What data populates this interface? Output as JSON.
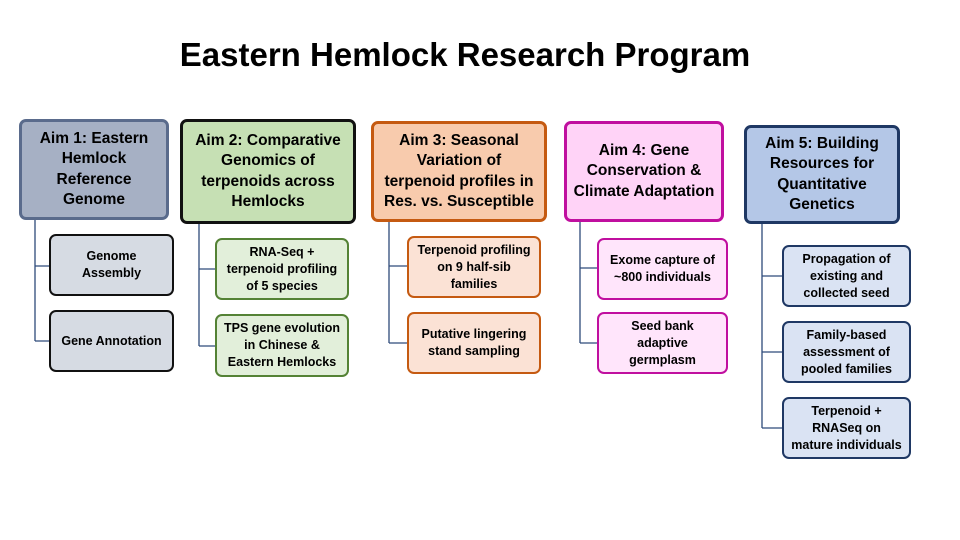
{
  "title": "Eastern Hemlock Research Program",
  "aims": [
    {
      "label": "Aim 1: Eastern Hemlock Reference Genome",
      "subs": [
        "Genome Assembly",
        "Gene Annotation"
      ]
    },
    {
      "label": "Aim 2: Comparative Genomics of terpenoids across Hemlocks",
      "subs": [
        "RNA-Seq + terpenoid profiling of 5 species",
        "TPS gene evolution in Chinese & Eastern Hemlocks"
      ]
    },
    {
      "label": "Aim 3: Seasonal Variation of terpenoid profiles in Res. vs. Susceptible",
      "subs": [
        "Terpenoid profiling on 9 half-sib families",
        "Putative lingering stand sampling"
      ]
    },
    {
      "label": "Aim 4: Gene Conservation & Climate Adaptation",
      "subs": [
        "Exome capture of ~800 individuals",
        "Seed bank adaptive germplasm"
      ]
    },
    {
      "label": "Aim 5: Building Resources for Quantitative Genetics",
      "subs": [
        "Propagation of existing and collected seed",
        "Family-based assessment of pooled families",
        "Terpenoid + RNASeq on mature individuals"
      ]
    }
  ],
  "colors": {
    "aim1": "#a6b0c4",
    "aim2": "#c6e0b4",
    "aim3": "#f8cbad",
    "aim4": "#ffd3f7",
    "aim5": "#b4c7e7",
    "connector": "#2e4a7a"
  }
}
